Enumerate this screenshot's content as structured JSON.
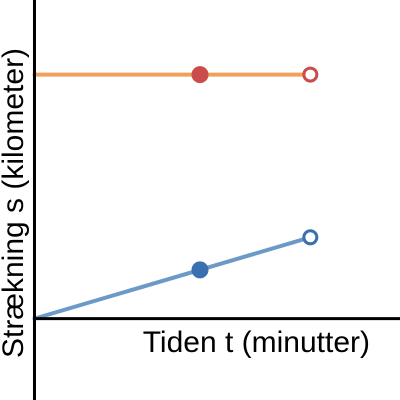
{
  "chart_data": {
    "type": "line",
    "xlabel": "Tiden t (minutter)",
    "ylabel": "Strækning s (kilometer)",
    "xlim": [
      -0.5,
      5.3
    ],
    "ylim": [
      -1.2,
      4.7
    ],
    "grid": false,
    "legend": "none",
    "series": [
      {
        "color": "#f0a05a",
        "line": [
          [
            0,
            3.6
          ],
          [
            4,
            3.6
          ]
        ],
        "points": [
          {
            "x": 2.4,
            "y": 3.6,
            "filled": true,
            "color": "#cc4c4c"
          },
          {
            "x": 4,
            "y": 3.6,
            "filled": false,
            "color": "#cc4c4c"
          }
        ]
      },
      {
        "color": "#6b9ac8",
        "line": [
          [
            0,
            0
          ],
          [
            4,
            1.2
          ]
        ],
        "points": [
          {
            "x": 2.4,
            "y": 0.72,
            "filled": true,
            "color": "#3a6fb0"
          },
          {
            "x": 4,
            "y": 1.2,
            "filled": false,
            "color": "#3a6fb0"
          }
        ]
      }
    ]
  }
}
